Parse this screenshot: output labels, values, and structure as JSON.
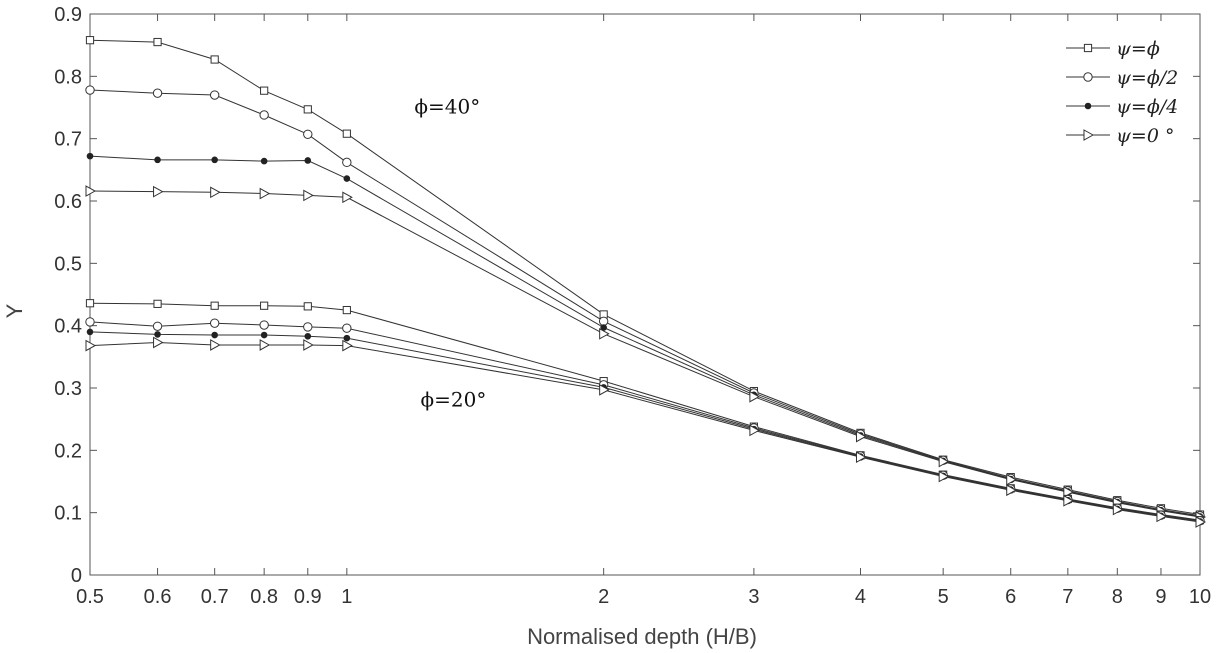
{
  "chart_data": {
    "type": "line",
    "xscale": "log",
    "xlabel": "Normalised depth (H/B)",
    "ylabel": "Υ",
    "xlim": [
      0.5,
      10
    ],
    "ylim": [
      0,
      0.9
    ],
    "xticks": [
      0.5,
      0.6,
      0.7,
      0.8,
      0.9,
      1,
      2,
      3,
      4,
      5,
      6,
      7,
      8,
      9,
      10
    ],
    "xtick_labels": [
      "0.5",
      "0.6",
      "0.7",
      "0.8",
      "0.9",
      "1",
      "2",
      "3",
      "4",
      "5",
      "6",
      "7",
      "8",
      "9",
      "10"
    ],
    "yticks": [
      0,
      0.1,
      0.2,
      0.3,
      0.4,
      0.5,
      0.6,
      0.7,
      0.8,
      0.9
    ],
    "ytick_labels": [
      "0",
      "0.1",
      "0.2",
      "0.3",
      "0.4",
      "0.5",
      "0.6",
      "0.7",
      "0.8",
      "0.9"
    ],
    "grid": false,
    "legend_position": "top-right",
    "x": [
      0.5,
      0.6,
      0.7,
      0.8,
      0.9,
      1,
      2,
      3,
      4,
      5,
      6,
      7,
      8,
      9,
      10
    ],
    "series": [
      {
        "name": "ψ=ϕ",
        "marker": "square",
        "group": "ϕ=40°",
        "values": [
          0.858,
          0.855,
          0.827,
          0.777,
          0.747,
          0.708,
          0.418,
          0.295,
          0.228,
          0.185,
          0.157,
          0.137,
          0.12,
          0.107,
          0.097
        ]
      },
      {
        "name": "ψ=ϕ/2",
        "marker": "circle",
        "group": "ϕ=40°",
        "values": [
          0.778,
          0.773,
          0.77,
          0.738,
          0.707,
          0.662,
          0.407,
          0.292,
          0.226,
          0.184,
          0.155,
          0.135,
          0.118,
          0.105,
          0.095
        ]
      },
      {
        "name": "ψ=ϕ/4",
        "marker": "dot",
        "group": "ϕ=40°",
        "values": [
          0.672,
          0.666,
          0.666,
          0.664,
          0.665,
          0.636,
          0.397,
          0.289,
          0.224,
          0.183,
          0.154,
          0.134,
          0.117,
          0.104,
          0.094
        ]
      },
      {
        "name": "ψ=0 °",
        "marker": "triangle-right",
        "group": "ϕ=40°",
        "values": [
          0.616,
          0.615,
          0.614,
          0.612,
          0.609,
          0.606,
          0.387,
          0.286,
          0.222,
          0.182,
          0.153,
          0.133,
          0.116,
          0.103,
          0.093
        ]
      },
      {
        "name": "ψ=ϕ",
        "marker": "square",
        "group": "ϕ=20°",
        "values": [
          0.436,
          0.435,
          0.432,
          0.432,
          0.431,
          0.425,
          0.311,
          0.238,
          0.192,
          0.161,
          0.139,
          0.122,
          0.108,
          0.097,
          0.088
        ]
      },
      {
        "name": "ψ=ϕ/2",
        "marker": "circle",
        "group": "ϕ=20°",
        "values": [
          0.406,
          0.399,
          0.404,
          0.401,
          0.398,
          0.396,
          0.305,
          0.236,
          0.191,
          0.16,
          0.138,
          0.121,
          0.107,
          0.096,
          0.087
        ]
      },
      {
        "name": "ψ=ϕ/4",
        "marker": "dot",
        "group": "ϕ=20°",
        "values": [
          0.39,
          0.386,
          0.385,
          0.385,
          0.383,
          0.38,
          0.301,
          0.234,
          0.19,
          0.159,
          0.137,
          0.12,
          0.106,
          0.095,
          0.086
        ]
      },
      {
        "name": "ψ=0 °",
        "marker": "triangle-right",
        "group": "ϕ=20°",
        "values": [
          0.368,
          0.373,
          0.369,
          0.369,
          0.369,
          0.368,
          0.297,
          0.232,
          0.189,
          0.158,
          0.136,
          0.119,
          0.105,
          0.094,
          0.085
        ]
      }
    ],
    "legend": [
      "ψ=ϕ",
      "ψ=ϕ/2",
      "ψ=ϕ/4",
      "ψ=0 °"
    ],
    "annotations": [
      {
        "text": "ϕ=40°",
        "x": 1.2,
        "y": 0.74
      },
      {
        "text": "ϕ=20°",
        "x": 1.22,
        "y": 0.27
      }
    ]
  }
}
